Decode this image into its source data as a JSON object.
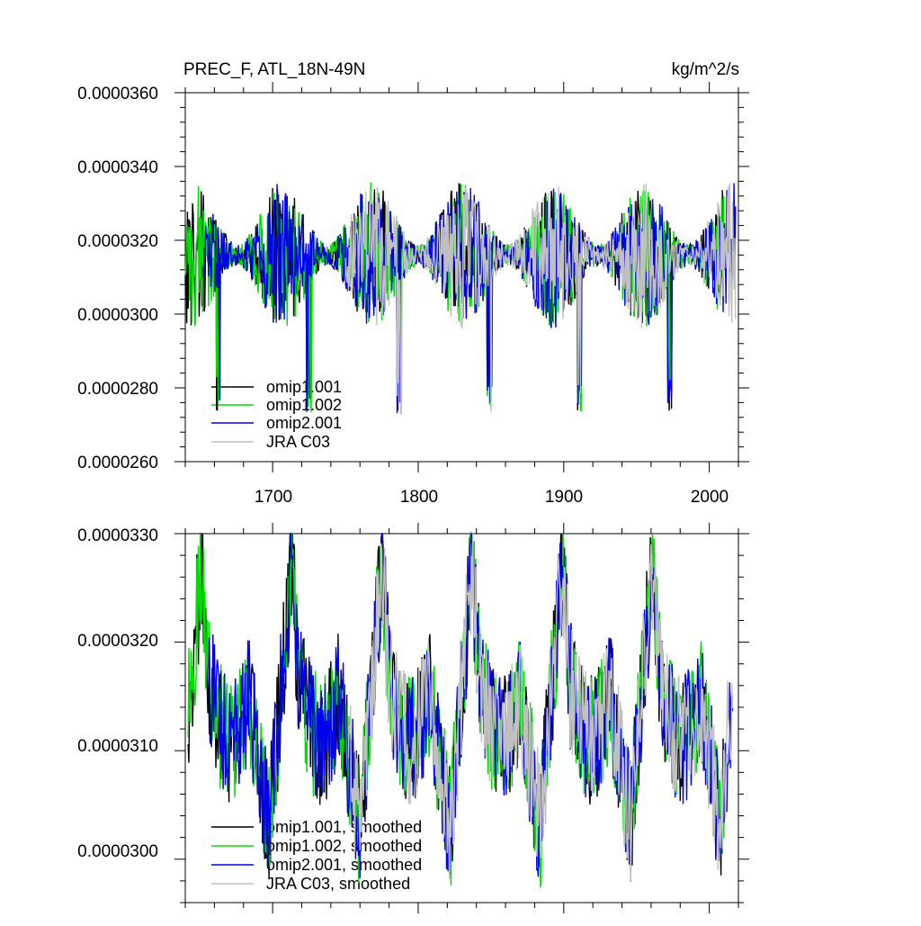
{
  "chart_data": [
    {
      "type": "line",
      "title": "PREC_F, ATL_18N-49N",
      "units": "kg/m^2/s",
      "xlim": [
        1640,
        2020
      ],
      "ylim": [
        2.6e-05,
        3.6e-05
      ],
      "x_ticks": [
        1700,
        1800,
        1900,
        2000
      ],
      "x_tick_labels": [
        "1700",
        "1800",
        "1900",
        "2000"
      ],
      "y_ticks": [
        2.6e-05,
        2.8e-05,
        3e-05,
        3.2e-05,
        3.4e-05,
        3.6e-05
      ],
      "y_tick_labels": [
        "0.0000260",
        "0.0000280",
        "0.0000300",
        "0.0000320",
        "0.0000340",
        "0.0000360"
      ],
      "legend": "bottom-left",
      "series": [
        {
          "name": "omip1.001",
          "color": "#000000",
          "start": 1640,
          "end": 2010,
          "mode": "annual"
        },
        {
          "name": "omip1.002",
          "color": "#00dd00",
          "start": 1640,
          "end": 2010,
          "mode": "annual"
        },
        {
          "name": "omip2.001",
          "color": "#0000ee",
          "start": 1652,
          "end": 2018,
          "mode": "annual"
        },
        {
          "name": "JRA C03",
          "color": "#c0c0c0",
          "start": 1750,
          "end": 2018,
          "mode": "annual"
        }
      ]
    },
    {
      "type": "line",
      "title": "",
      "xlim": [
        1640,
        2020
      ],
      "ylim": [
        2.96e-05,
        3.3e-05
      ],
      "x_ticks": [
        1700,
        1800,
        1900,
        2000
      ],
      "y_ticks": [
        3e-05,
        3.1e-05,
        3.2e-05,
        3.3e-05
      ],
      "y_tick_labels": [
        "0.0000300",
        "0.0000310",
        "0.0000320",
        "0.0000330"
      ],
      "legend": "bottom-left",
      "series": [
        {
          "name": "omip1.001, smoothed",
          "color": "#000000",
          "start": 1642,
          "end": 2012,
          "mode": "smooth"
        },
        {
          "name": "omip1.002, smoothed",
          "color": "#00dd00",
          "start": 1642,
          "end": 2012,
          "mode": "smooth"
        },
        {
          "name": "omip2.001, smoothed",
          "color": "#0000ee",
          "start": 1656,
          "end": 2016,
          "mode": "smooth"
        },
        {
          "name": "JRA C03, smoothed",
          "color": "#c0c0c0",
          "start": 1752,
          "end": 2016,
          "mode": "smooth"
        }
      ]
    }
  ]
}
